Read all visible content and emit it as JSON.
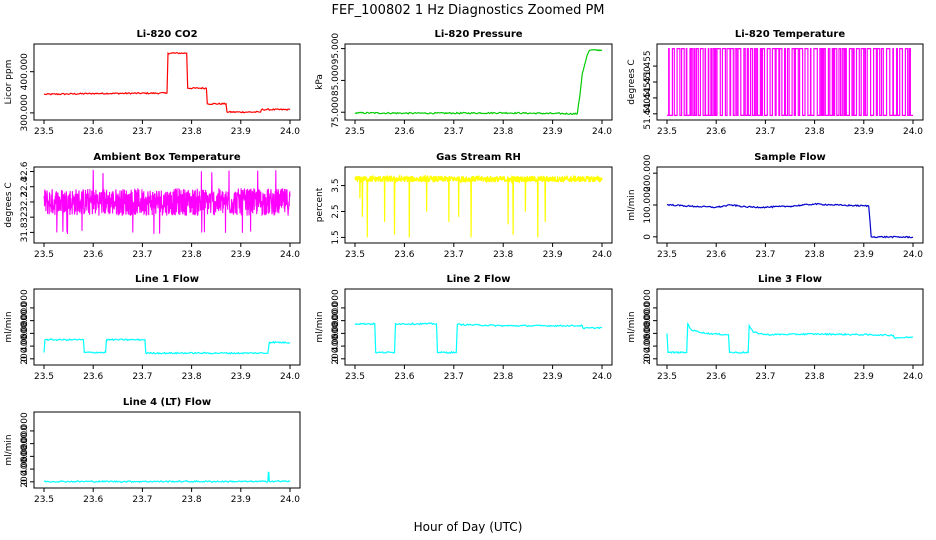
{
  "figure": {
    "title": "FEF_100802  1 Hz Diagnostics Zoomed PM",
    "xlabel": "Hour of Day (UTC)"
  },
  "chart_data": [
    {
      "type": "line",
      "title": "Li-820 CO2",
      "ylabel": "Licor ppm",
      "color": "#ff0000",
      "xlim": [
        23.5,
        24.0
      ],
      "ylim": [
        290,
        460
      ],
      "xticks": [
        23.5,
        23.6,
        23.7,
        23.8,
        23.9,
        24.0
      ],
      "yticks": [
        300,
        400
      ],
      "series": [
        {
          "x": [
            23.5,
            23.6,
            23.75,
            23.752,
            23.79,
            23.792,
            23.83,
            23.832,
            23.87,
            23.872,
            23.94,
            23.942,
            24.0
          ],
          "y": [
            345,
            347,
            348,
            445,
            445,
            360,
            360,
            322,
            322,
            302,
            302,
            308,
            308
          ]
        }
      ]
    },
    {
      "type": "line",
      "title": "Li-820 Pressure",
      "ylabel": "kPa",
      "color": "#00cc00",
      "xlim": [
        23.5,
        24.0
      ],
      "ylim": [
        73.5,
        95.5
      ],
      "xticks": [
        23.5,
        23.6,
        23.7,
        23.8,
        23.9,
        24.0
      ],
      "yticks": [
        75,
        85,
        95
      ],
      "series": [
        {
          "x": [
            23.5,
            23.6,
            23.7,
            23.8,
            23.9,
            23.95,
            23.955,
            23.96,
            23.965,
            23.97,
            23.975,
            24.0
          ],
          "y": [
            74.8,
            74.7,
            74.7,
            74.8,
            74.6,
            74.5,
            80,
            87,
            90,
            93,
            94.5,
            94.5
          ]
        }
      ]
    },
    {
      "type": "line",
      "title": "Li-820 Temperature",
      "ylabel": "degrees C",
      "color": "#ff00ff",
      "xlim": [
        23.5,
        24.0
      ],
      "ylim": [
        51.439,
        51.461
      ],
      "xticks": [
        23.5,
        23.6,
        23.7,
        23.8,
        23.9,
        24.0
      ],
      "yticks": [
        51.44,
        51.445,
        51.45,
        51.455
      ],
      "pattern": "toggle",
      "levels": [
        51.4395,
        51.4605
      ]
    },
    {
      "type": "line",
      "title": "Ambient Box Temperature",
      "ylabel": "degrees C",
      "color": "#ff00ff",
      "xlim": [
        23.5,
        24.0
      ],
      "ylim": [
        31.7,
        32.62
      ],
      "xticks": [
        23.5,
        23.6,
        23.7,
        23.8,
        23.9,
        24.0
      ],
      "yticks": [
        31.8,
        32.0,
        32.2,
        32.4,
        32.6
      ],
      "pattern": "noise",
      "center": 32.2,
      "spread": 0.18,
      "outliers": [
        31.8,
        32.6
      ]
    },
    {
      "type": "line",
      "title": "Gas Stream RH",
      "ylabel": "percent",
      "color": "#ffff00",
      "xlim": [
        23.5,
        24.0
      ],
      "ylim": [
        1.4,
        4.1
      ],
      "xticks": [
        23.5,
        23.6,
        23.7,
        23.8,
        23.9,
        24.0
      ],
      "yticks": [
        1.5,
        2.5,
        3.5
      ],
      "pattern": "noise-dips",
      "center": 3.75,
      "spread": 0.12,
      "dips": [
        {
          "x": 23.51,
          "y": 3.0
        },
        {
          "x": 23.515,
          "y": 2.3
        },
        {
          "x": 23.525,
          "y": 1.5
        },
        {
          "x": 23.56,
          "y": 2.1
        },
        {
          "x": 23.58,
          "y": 1.6
        },
        {
          "x": 23.61,
          "y": 1.5
        },
        {
          "x": 23.645,
          "y": 2.5
        },
        {
          "x": 23.69,
          "y": 2.1
        },
        {
          "x": 23.71,
          "y": 2.3
        },
        {
          "x": 23.735,
          "y": 1.5
        },
        {
          "x": 23.81,
          "y": 2.0
        },
        {
          "x": 23.82,
          "y": 1.6
        },
        {
          "x": 23.845,
          "y": 2.5
        },
        {
          "x": 23.87,
          "y": 1.5
        },
        {
          "x": 23.885,
          "y": 2.1
        }
      ]
    },
    {
      "type": "line",
      "title": "Sample Flow",
      "ylabel": "ml/min",
      "color": "#0000cc",
      "xlim": [
        23.5,
        24.0
      ],
      "ylim": [
        -10,
        210
      ],
      "xticks": [
        23.5,
        23.6,
        23.7,
        23.8,
        23.9,
        24.0
      ],
      "yticks": [
        0,
        100,
        200
      ],
      "series": [
        {
          "x": [
            23.5,
            23.55,
            23.6,
            23.63,
            23.66,
            23.7,
            23.75,
            23.8,
            23.83,
            23.86,
            23.91,
            23.915,
            24.0
          ],
          "y": [
            101,
            96,
            93,
            100,
            94,
            93,
            96,
            103,
            101,
            99,
            97,
            0,
            -1
          ]
        }
      ]
    },
    {
      "type": "line",
      "title": "Line 1 Flow",
      "ylabel": "ml/min",
      "color": "#00ffff",
      "xlim": [
        23.5,
        24.0
      ],
      "ylim": [
        -50,
        1050
      ],
      "xticks": [
        23.5,
        23.6,
        23.7,
        23.8,
        23.9,
        24.0
      ],
      "yticks": [
        0,
        200,
        400,
        600,
        800
      ],
      "series": [
        {
          "x": [
            23.5,
            23.502,
            23.58,
            23.582,
            23.625,
            23.627,
            23.705,
            23.707,
            23.955,
            23.958,
            24.0
          ],
          "y": [
            100,
            300,
            300,
            100,
            100,
            300,
            300,
            90,
            90,
            260,
            255
          ]
        }
      ]
    },
    {
      "type": "line",
      "title": "Line 2 Flow",
      "ylabel": "ml/min",
      "color": "#00ffff",
      "xlim": [
        23.5,
        24.0
      ],
      "ylim": [
        -50,
        1050
      ],
      "xticks": [
        23.5,
        23.6,
        23.7,
        23.8,
        23.9,
        24.0
      ],
      "yticks": [
        0,
        200,
        400,
        600,
        800
      ],
      "series": [
        {
          "x": [
            23.5,
            23.54,
            23.542,
            23.58,
            23.582,
            23.665,
            23.667,
            23.705,
            23.707,
            23.8,
            23.9,
            23.96,
            23.962,
            24.0
          ],
          "y": [
            550,
            550,
            100,
            100,
            550,
            550,
            100,
            100,
            540,
            520,
            520,
            520,
            480,
            490
          ]
        }
      ]
    },
    {
      "type": "line",
      "title": "Line 3 Flow",
      "ylabel": "ml/min",
      "color": "#00ffff",
      "xlim": [
        23.5,
        24.0
      ],
      "ylim": [
        -50,
        1050
      ],
      "xticks": [
        23.5,
        23.6,
        23.7,
        23.8,
        23.9,
        24.0
      ],
      "yticks": [
        0,
        200,
        400,
        600,
        800
      ],
      "series": [
        {
          "x": [
            23.5,
            23.502,
            23.505,
            23.54,
            23.542,
            23.55,
            23.58,
            23.62,
            23.625,
            23.627,
            23.665,
            23.667,
            23.675,
            23.7,
            23.8,
            23.9,
            23.96,
            23.962,
            24.0
          ],
          "y": [
            400,
            100,
            100,
            100,
            550,
            450,
            400,
            380,
            380,
            100,
            100,
            520,
            420,
            380,
            390,
            380,
            370,
            330,
            340
          ]
        }
      ]
    },
    {
      "type": "line",
      "title": "Line 4 (LT) Flow",
      "ylabel": "ml/min",
      "color": "#00ffff",
      "xlim": [
        23.5,
        24.0
      ],
      "ylim": [
        -50,
        1050
      ],
      "xticks": [
        23.5,
        23.6,
        23.7,
        23.8,
        23.9,
        24.0
      ],
      "yticks": [
        0,
        200,
        400,
        600,
        800
      ],
      "series": [
        {
          "x": [
            23.5,
            23.7,
            23.955,
            23.956,
            23.957,
            23.958,
            24.0
          ],
          "y": [
            5,
            5,
            5,
            150,
            150,
            10,
            8
          ]
        }
      ]
    }
  ]
}
